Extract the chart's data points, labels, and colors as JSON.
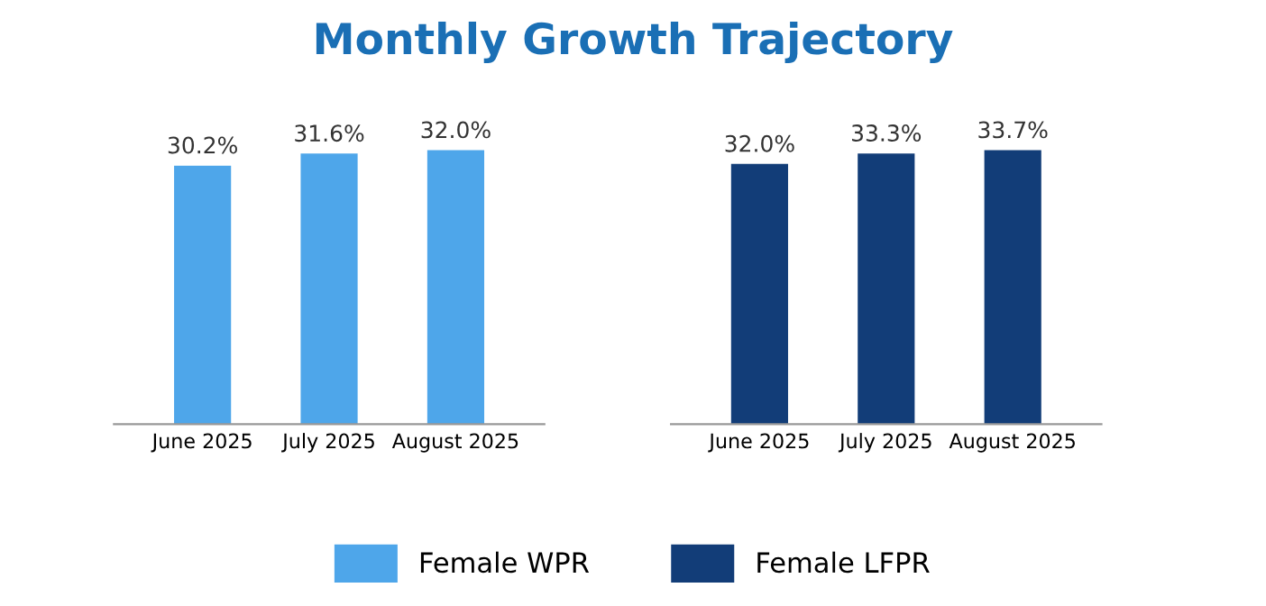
{
  "chart_data": [
    {
      "type": "bar",
      "title": "Monthly Growth Trajectory",
      "categories": [
        "June 2025",
        "July 2025",
        "August 2025"
      ],
      "legend": "bottom",
      "series": [
        {
          "name": "Female WPR",
          "color": "#4ea6ea",
          "values": [
            30.2,
            31.6,
            32.0
          ],
          "value_labels": [
            "30.2%",
            "31.6%",
            "32.0%"
          ]
        }
      ]
    },
    {
      "type": "bar",
      "categories": [
        "June 2025",
        "July 2025",
        "August 2025"
      ],
      "legend": "bottom",
      "series": [
        {
          "name": "Female LFPR",
          "color": "#123d78",
          "values": [
            32.0,
            33.3,
            33.7
          ],
          "value_labels": [
            "32.0%",
            "33.3%",
            "33.7%"
          ]
        }
      ]
    }
  ]
}
